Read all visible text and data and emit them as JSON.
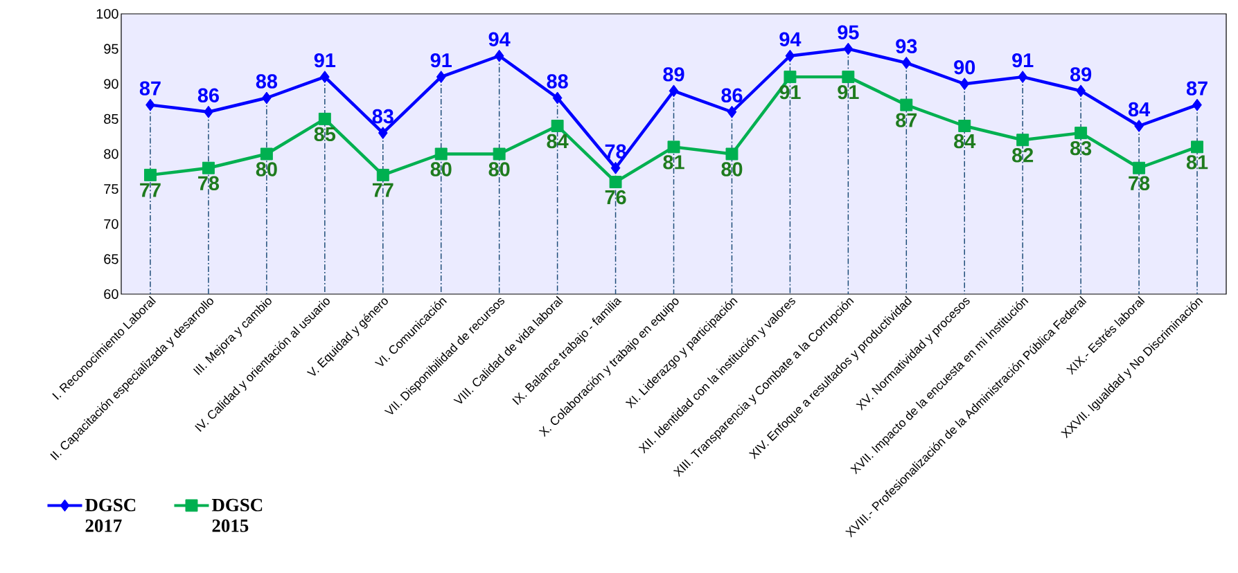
{
  "chart_data": {
    "type": "line",
    "categories": [
      "I. Reconocimiento Laboral",
      "II. Capacitación especializada y desarrollo",
      "III. Mejora y cambio",
      "IV. Calidad y orientación al usuario",
      "V. Equidad y género",
      "VI. Comunicación",
      "VII. Disponibilidad de recursos",
      "VIII. Calidad de vida laboral",
      "IX. Balance trabajo - familia",
      "X. Colaboración y trabajo en equipo",
      "XI. Liderazgo y participación",
      "XII. Identidad con la institución y valores",
      "XIII. Transparencia y Combate a la Corrupción",
      "XIV. Enfoque a resultados y productividad",
      "XV. Normatividad y procesos",
      "XVII. Impacto de la encuesta en mi Institución",
      "XVIII.- Profesionalización de la Administración Pública Federal",
      "XIX.- Estrés laboral",
      "XXVII. Igualdad y No Discriminación"
    ],
    "series": [
      {
        "name": "DGSC 2017",
        "color": "#0000ff",
        "marker": "diamond",
        "values": [
          87,
          86,
          88,
          91,
          83,
          91,
          94,
          88,
          78,
          89,
          86,
          94,
          95,
          93,
          90,
          91,
          89,
          84,
          87
        ]
      },
      {
        "name": "DGSC 2015",
        "color": "#00b050",
        "marker": "square",
        "values": [
          77,
          78,
          80,
          85,
          77,
          80,
          80,
          84,
          76,
          81,
          80,
          91,
          91,
          87,
          84,
          82,
          83,
          78,
          81
        ]
      }
    ],
    "ylim": [
      60,
      100
    ],
    "yticks": [
      60,
      65,
      70,
      75,
      80,
      85,
      90,
      95,
      100
    ],
    "data_labels": true,
    "legend": "bottom left",
    "grid": "x"
  }
}
